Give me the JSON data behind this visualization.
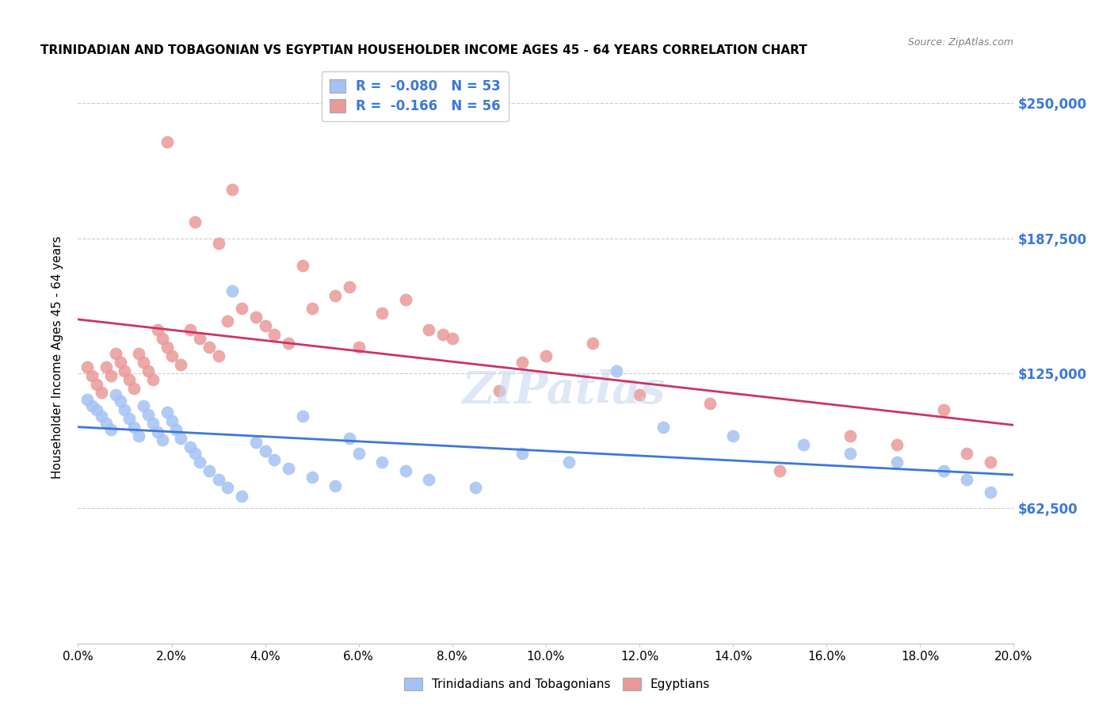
{
  "title": "TRINIDADIAN AND TOBAGONIAN VS EGYPTIAN HOUSEHOLDER INCOME AGES 45 - 64 YEARS CORRELATION CHART",
  "source": "Source: ZipAtlas.com",
  "xlabel_ticks": [
    "0.0%",
    "2.0%",
    "4.0%",
    "6.0%",
    "8.0%",
    "10.0%",
    "12.0%",
    "14.0%",
    "16.0%",
    "18.0%",
    "20.0%"
  ],
  "xlabel_vals": [
    0.0,
    2.0,
    4.0,
    6.0,
    8.0,
    10.0,
    12.0,
    14.0,
    16.0,
    18.0,
    20.0
  ],
  "ylabel_ticks": [
    0,
    62500,
    125000,
    187500,
    250000
  ],
  "ylabel_labels": [
    "",
    "$62,500",
    "$125,000",
    "$187,500",
    "$250,000"
  ],
  "ylabel": "Householder Income Ages 45 - 64 years",
  "xlim": [
    0.0,
    20.0
  ],
  "ylim": [
    0,
    265000
  ],
  "legend_labels": [
    "Trinidadians and Tobagonians",
    "Egyptians"
  ],
  "R_blue": -0.08,
  "N_blue": 53,
  "R_pink": -0.166,
  "N_pink": 56,
  "blue_color": "#a4c2f4",
  "pink_color": "#ea9999",
  "blue_line_color": "#3c78d8",
  "pink_line_color": "#cc3366",
  "watermark": "ZIPatlas",
  "blue_x": [
    0.2,
    0.3,
    0.4,
    0.5,
    0.6,
    0.7,
    0.8,
    0.9,
    1.0,
    1.1,
    1.2,
    1.3,
    1.4,
    1.5,
    1.6,
    1.7,
    1.8,
    1.9,
    2.0,
    2.1,
    2.2,
    2.4,
    2.5,
    2.6,
    2.8,
    3.0,
    3.2,
    3.5,
    3.8,
    4.0,
    4.2,
    4.5,
    5.0,
    5.5,
    6.0,
    6.5,
    7.0,
    7.5,
    8.5,
    9.5,
    10.5,
    11.5,
    12.5,
    14.0,
    15.5,
    16.5,
    17.5,
    18.5,
    19.0,
    19.5,
    4.8,
    5.8,
    3.3
  ],
  "blue_y": [
    113000,
    110000,
    108000,
    105000,
    102000,
    99000,
    115000,
    112000,
    108000,
    104000,
    100000,
    96000,
    110000,
    106000,
    102000,
    98000,
    94000,
    107000,
    103000,
    99000,
    95000,
    91000,
    88000,
    84000,
    80000,
    76000,
    72000,
    68000,
    93000,
    89000,
    85000,
    81000,
    77000,
    73000,
    88000,
    84000,
    80000,
    76000,
    72000,
    88000,
    84000,
    126000,
    100000,
    96000,
    92000,
    88000,
    84000,
    80000,
    76000,
    70000,
    105000,
    95000,
    163000
  ],
  "pink_x": [
    0.2,
    0.3,
    0.4,
    0.5,
    0.6,
    0.7,
    0.8,
    0.9,
    1.0,
    1.1,
    1.2,
    1.3,
    1.4,
    1.5,
    1.6,
    1.7,
    1.8,
    1.9,
    2.0,
    2.2,
    2.4,
    2.6,
    2.8,
    3.0,
    3.2,
    3.5,
    3.8,
    4.0,
    4.2,
    4.5,
    5.0,
    5.5,
    6.0,
    6.5,
    7.0,
    7.5,
    8.0,
    9.0,
    10.0,
    11.0,
    12.0,
    13.5,
    15.0,
    16.5,
    17.5,
    18.5,
    19.0,
    19.5,
    3.3,
    4.8,
    5.8,
    7.8,
    9.5,
    1.9,
    2.5,
    3.0
  ],
  "pink_y": [
    128000,
    124000,
    120000,
    116000,
    128000,
    124000,
    134000,
    130000,
    126000,
    122000,
    118000,
    134000,
    130000,
    126000,
    122000,
    145000,
    141000,
    137000,
    133000,
    129000,
    145000,
    141000,
    137000,
    133000,
    149000,
    155000,
    151000,
    147000,
    143000,
    139000,
    155000,
    161000,
    137000,
    153000,
    159000,
    145000,
    141000,
    117000,
    133000,
    139000,
    115000,
    111000,
    80000,
    96000,
    92000,
    108000,
    88000,
    84000,
    210000,
    175000,
    165000,
    143000,
    130000,
    232000,
    195000,
    185000
  ]
}
